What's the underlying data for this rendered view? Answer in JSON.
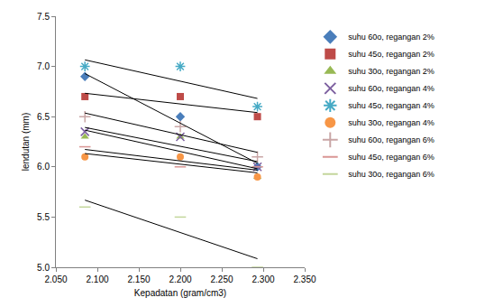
{
  "chart_data": {
    "type": "scatter",
    "x_label": "Kepadatan (gram/cm3)",
    "y_label": "lendutan (mm)",
    "x": [
      2.085,
      2.2,
      2.293
    ],
    "series": [
      {
        "name": "suhu 60o, regangan 2%",
        "color": "#4a7ebb",
        "marker": "diamond",
        "values": [
          6.9,
          6.5,
          6.0
        ]
      },
      {
        "name": "suhu 45o, regangan 2%",
        "color": "#be4b48",
        "marker": "square",
        "values": [
          6.7,
          6.7,
          6.5
        ]
      },
      {
        "name": "suhu 30o, regangan 2%",
        "color": "#98b954",
        "marker": "triangle-up",
        "values": [
          6.3,
          6.3,
          5.9
        ]
      },
      {
        "name": "suhu 60o, regangan 4%",
        "color": "#7d60a0",
        "marker": "x-thin",
        "values": [
          6.35,
          6.3,
          6.0
        ]
      },
      {
        "name": "suhu 45o, regangan 4%",
        "color": "#46aac5",
        "marker": "asterisk",
        "values": [
          7.0,
          7.0,
          6.6
        ]
      },
      {
        "name": "suhu 30o, regangan 4%",
        "color": "#f79646",
        "marker": "circle",
        "values": [
          6.1,
          6.1,
          5.9
        ]
      },
      {
        "name": "suhu 60o, regangan 6%",
        "color": "#c9a6a6",
        "marker": "cross-thin",
        "values": [
          6.5,
          6.4,
          6.1
        ]
      },
      {
        "name": "suhu 45o, regangan 6%",
        "color": "#d99694",
        "marker": "line-ew",
        "values": [
          6.2,
          6.0,
          6.0
        ]
      },
      {
        "name": "suhu 30o, regangan 6%",
        "color": "#c3d69b",
        "marker": "line-ew",
        "values": [
          5.6,
          5.5,
          5.0
        ]
      }
    ],
    "xlim": [
      2.05,
      2.35
    ],
    "xticks": [
      {
        "value": 2.05,
        "label": "2.050"
      },
      {
        "value": 2.1,
        "label": "2.100"
      },
      {
        "value": 2.15,
        "label": "2.150"
      },
      {
        "value": 2.2,
        "label": "2.200"
      },
      {
        "value": 2.25,
        "label": "2.250"
      },
      {
        "value": 2.3,
        "label": "2.300"
      },
      {
        "value": 2.35,
        "label": "2.350"
      }
    ],
    "ylim": [
      5.0,
      7.5
    ],
    "yticks": [
      {
        "value": 5.0,
        "label": "5.0"
      },
      {
        "value": 5.5,
        "label": "5.5"
      },
      {
        "value": 6.0,
        "label": "6.0"
      },
      {
        "value": 6.5,
        "label": "6.5"
      },
      {
        "value": 7.0,
        "label": "7.0"
      },
      {
        "value": 7.5,
        "label": "7.5"
      }
    ],
    "grid": false,
    "legend": "right"
  }
}
